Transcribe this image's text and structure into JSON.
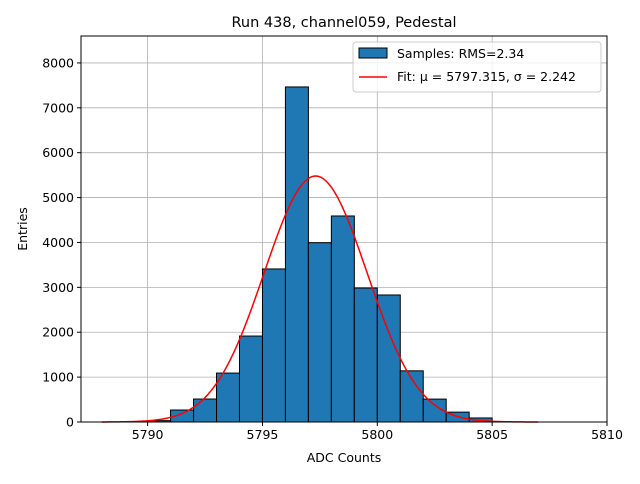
{
  "chart_data": {
    "type": "bar",
    "title": "Run 438, channel059, Pedestal",
    "xlabel": "ADC Counts",
    "ylabel": "Entries",
    "xlim": [
      5787.1,
      5810
    ],
    "ylim": [
      0,
      8600
    ],
    "xticks": [
      5790,
      5795,
      5800,
      5805,
      5810
    ],
    "yticks": [
      0,
      1000,
      2000,
      3000,
      4000,
      5000,
      6000,
      7000,
      8000
    ],
    "grid": true,
    "legend_position": "top-right",
    "bin_edges": [
      5790,
      5791,
      5792,
      5793,
      5794,
      5795,
      5796,
      5797,
      5798,
      5799,
      5800,
      5801,
      5802,
      5803,
      5804,
      5805
    ],
    "values": [
      30,
      267,
      512,
      1090,
      1915,
      3410,
      7465,
      3995,
      4590,
      2985,
      2830,
      1140,
      510,
      220,
      90
    ],
    "series": [
      {
        "name": "Samples: RMS=2.34",
        "kind": "histogram",
        "color": "#1f77b4"
      },
      {
        "name": "Fit: μ = 5797.315, σ = 2.242",
        "kind": "gaussian",
        "mu": 5797.315,
        "sigma": 2.242,
        "amplitude": 5480,
        "x_range": [
          5788,
          5807
        ],
        "color": "#ff0000"
      }
    ]
  }
}
